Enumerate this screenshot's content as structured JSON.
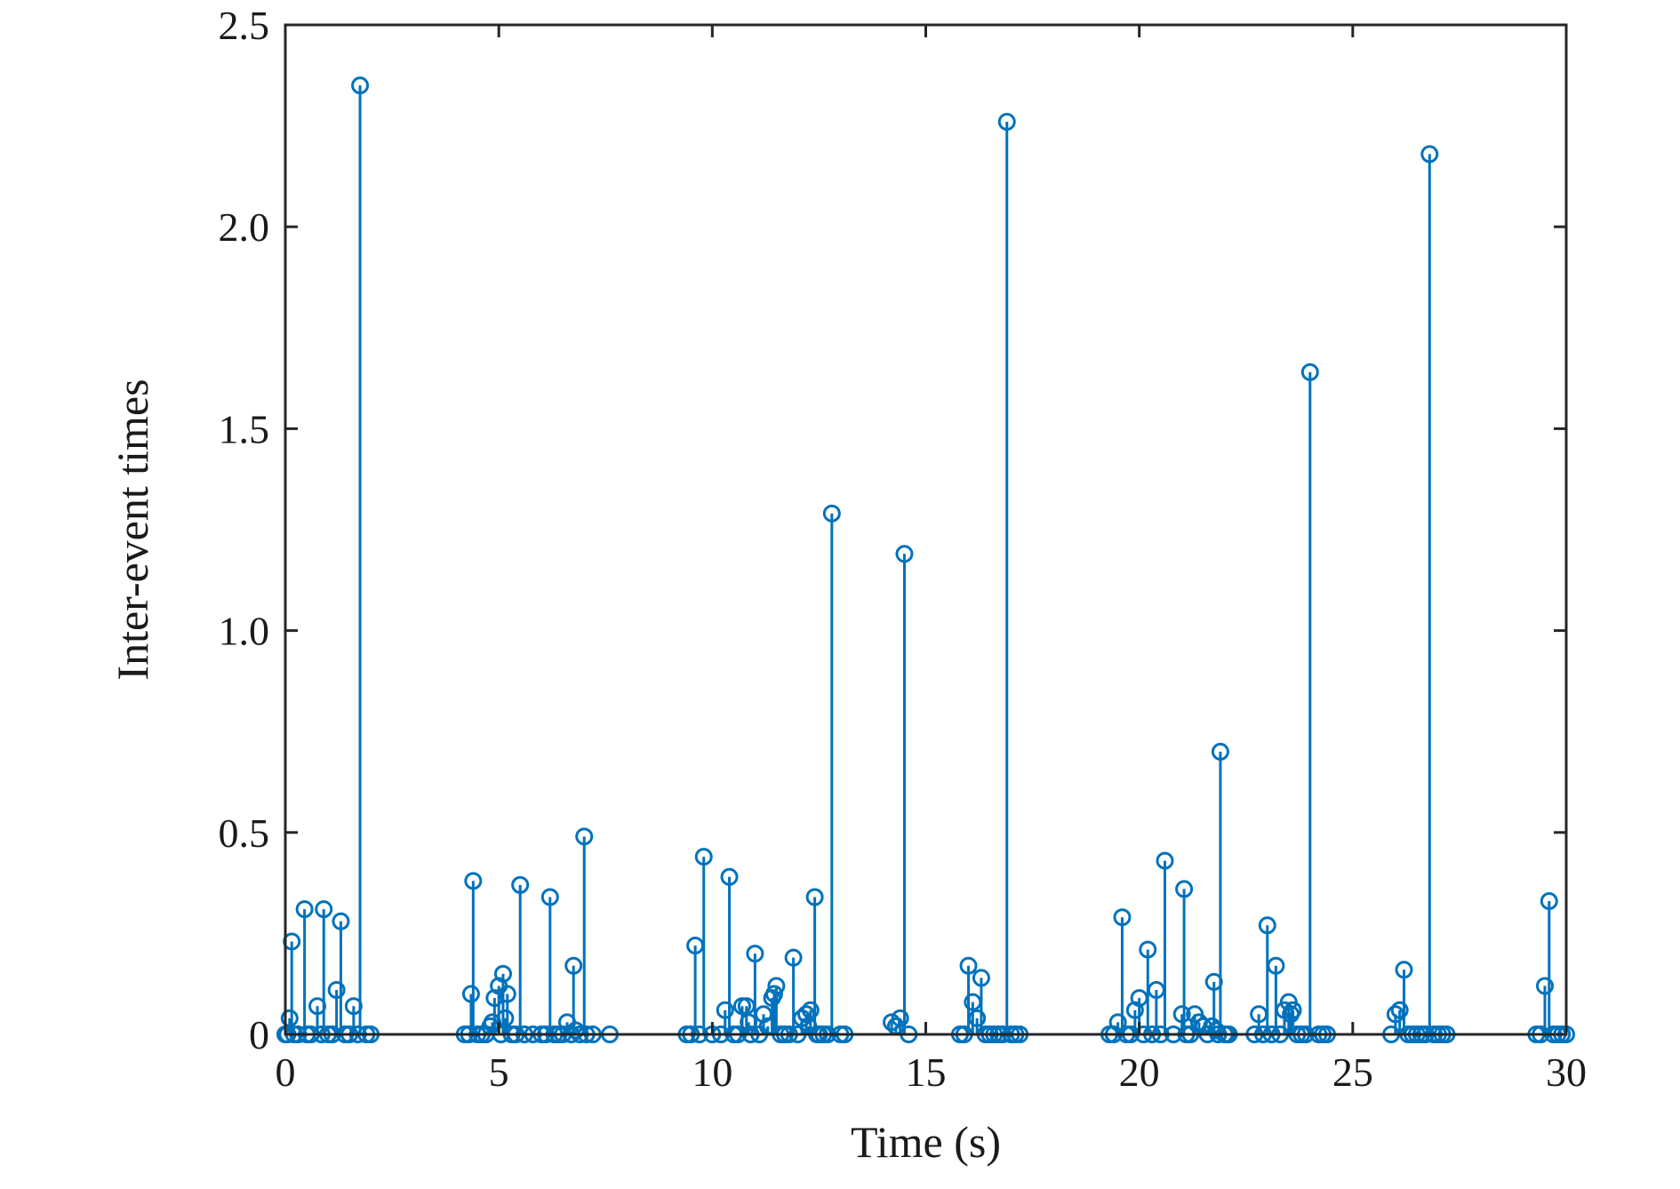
{
  "chart_data": {
    "type": "stem",
    "title": "",
    "xlabel": "Time (s)",
    "ylabel": "Inter-event times",
    "xlim": [
      0,
      30
    ],
    "ylim": [
      0,
      2.5
    ],
    "xticks": [
      0,
      5,
      10,
      15,
      20,
      25,
      30
    ],
    "xtick_labels": [
      "0",
      "5",
      "10",
      "15",
      "20",
      "25",
      "30"
    ],
    "yticks": [
      0,
      0.5,
      1.0,
      1.5,
      2.0,
      2.5
    ],
    "ytick_labels": [
      "0",
      "0.5",
      "1.0",
      "1.5",
      "2.0",
      "2.5"
    ],
    "grid": false,
    "series": [
      {
        "name": "Inter-event times",
        "color": "#0072BD",
        "x": [
          0.0,
          0.05,
          0.1,
          0.15,
          0.2,
          0.3,
          0.45,
          0.5,
          0.6,
          0.75,
          0.85,
          0.9,
          1.0,
          1.1,
          1.2,
          1.3,
          1.4,
          1.5,
          1.6,
          1.7,
          1.75,
          1.9,
          2.0,
          4.2,
          4.3,
          4.35,
          4.4,
          4.5,
          4.6,
          4.7,
          4.8,
          4.85,
          4.9,
          5.0,
          5.05,
          5.1,
          5.15,
          5.2,
          5.3,
          5.4,
          5.5,
          5.6,
          5.8,
          6.0,
          6.1,
          6.2,
          6.3,
          6.4,
          6.5,
          6.6,
          6.7,
          6.75,
          6.8,
          6.9,
          7.0,
          7.05,
          7.2,
          7.6,
          9.4,
          9.5,
          9.6,
          9.7,
          9.8,
          10.0,
          10.2,
          10.3,
          10.4,
          10.5,
          10.6,
          10.7,
          10.8,
          10.85,
          10.9,
          11.0,
          11.1,
          11.2,
          11.3,
          11.4,
          11.45,
          11.5,
          11.6,
          11.7,
          11.8,
          11.9,
          12.0,
          12.1,
          12.2,
          12.25,
          12.3,
          12.4,
          12.45,
          12.5,
          12.6,
          12.7,
          12.8,
          13.0,
          13.1,
          14.2,
          14.3,
          14.4,
          14.5,
          14.6,
          15.8,
          15.9,
          16.0,
          16.1,
          16.2,
          16.3,
          16.4,
          16.5,
          16.6,
          16.7,
          16.8,
          16.9,
          17.0,
          17.1,
          17.2,
          19.3,
          19.4,
          19.5,
          19.6,
          19.7,
          19.8,
          19.9,
          20.0,
          20.1,
          20.2,
          20.3,
          20.4,
          20.5,
          20.6,
          20.8,
          21.0,
          21.05,
          21.1,
          21.2,
          21.3,
          21.4,
          21.5,
          21.6,
          21.7,
          21.75,
          21.8,
          21.85,
          21.9,
          22.0,
          22.05,
          22.1,
          22.7,
          22.8,
          22.9,
          23.0,
          23.1,
          23.2,
          23.3,
          23.4,
          23.5,
          23.55,
          23.6,
          23.7,
          23.8,
          23.9,
          24.0,
          24.2,
          24.3,
          24.4,
          25.9,
          26.0,
          26.1,
          26.2,
          26.3,
          26.4,
          26.5,
          26.6,
          26.7,
          26.8,
          26.9,
          27.0,
          27.1,
          27.2,
          29.3,
          29.4,
          29.5,
          29.6,
          29.7,
          29.8,
          29.9,
          30.0
        ],
        "y": [
          0.0,
          0.0,
          0.04,
          0.23,
          0.0,
          0.0,
          0.31,
          0.0,
          0.0,
          0.07,
          0.0,
          0.31,
          0.0,
          0.0,
          0.11,
          0.28,
          0.0,
          0.0,
          0.07,
          0.0,
          2.35,
          0.0,
          0.0,
          0.0,
          0.0,
          0.1,
          0.38,
          0.0,
          0.0,
          0.0,
          0.02,
          0.03,
          0.09,
          0.12,
          0.0,
          0.15,
          0.04,
          0.1,
          0.0,
          0.0,
          0.37,
          0.0,
          0.0,
          0.0,
          0.0,
          0.34,
          0.0,
          0.0,
          0.0,
          0.03,
          0.0,
          0.17,
          0.01,
          0.0,
          0.49,
          0.0,
          0.0,
          0.0,
          0.0,
          0.0,
          0.22,
          0.0,
          0.44,
          0.0,
          0.0,
          0.06,
          0.39,
          0.0,
          0.0,
          0.07,
          0.07,
          0.03,
          0.0,
          0.2,
          0.0,
          0.05,
          0.02,
          0.09,
          0.1,
          0.12,
          0.0,
          0.0,
          0.0,
          0.19,
          0.0,
          0.04,
          0.05,
          0.02,
          0.06,
          0.34,
          0.0,
          0.0,
          0.0,
          0.0,
          1.29,
          0.0,
          0.0,
          0.03,
          0.02,
          0.04,
          1.19,
          0.0,
          0.0,
          0.0,
          0.17,
          0.08,
          0.04,
          0.14,
          0.0,
          0.0,
          0.0,
          0.0,
          0.0,
          2.26,
          0.0,
          0.0,
          0.0,
          0.0,
          0.0,
          0.03,
          0.29,
          0.0,
          0.0,
          0.06,
          0.09,
          0.0,
          0.21,
          0.0,
          0.11,
          0.0,
          0.43,
          0.0,
          0.05,
          0.36,
          0.0,
          0.0,
          0.05,
          0.03,
          0.02,
          0.0,
          0.02,
          0.13,
          0.01,
          0.0,
          0.7,
          0.0,
          0.0,
          0.0,
          0.0,
          0.05,
          0.0,
          0.27,
          0.0,
          0.17,
          0.0,
          0.06,
          0.08,
          0.05,
          0.06,
          0.0,
          0.0,
          0.0,
          1.64,
          0.0,
          0.0,
          0.0,
          0.0,
          0.05,
          0.06,
          0.16,
          0.0,
          0.0,
          0.0,
          0.0,
          0.0,
          2.18,
          0.0,
          0.0,
          0.0,
          0.0,
          0.0,
          0.0,
          0.12,
          0.33,
          0.0,
          0.0,
          0.0,
          0.0
        ]
      }
    ]
  }
}
